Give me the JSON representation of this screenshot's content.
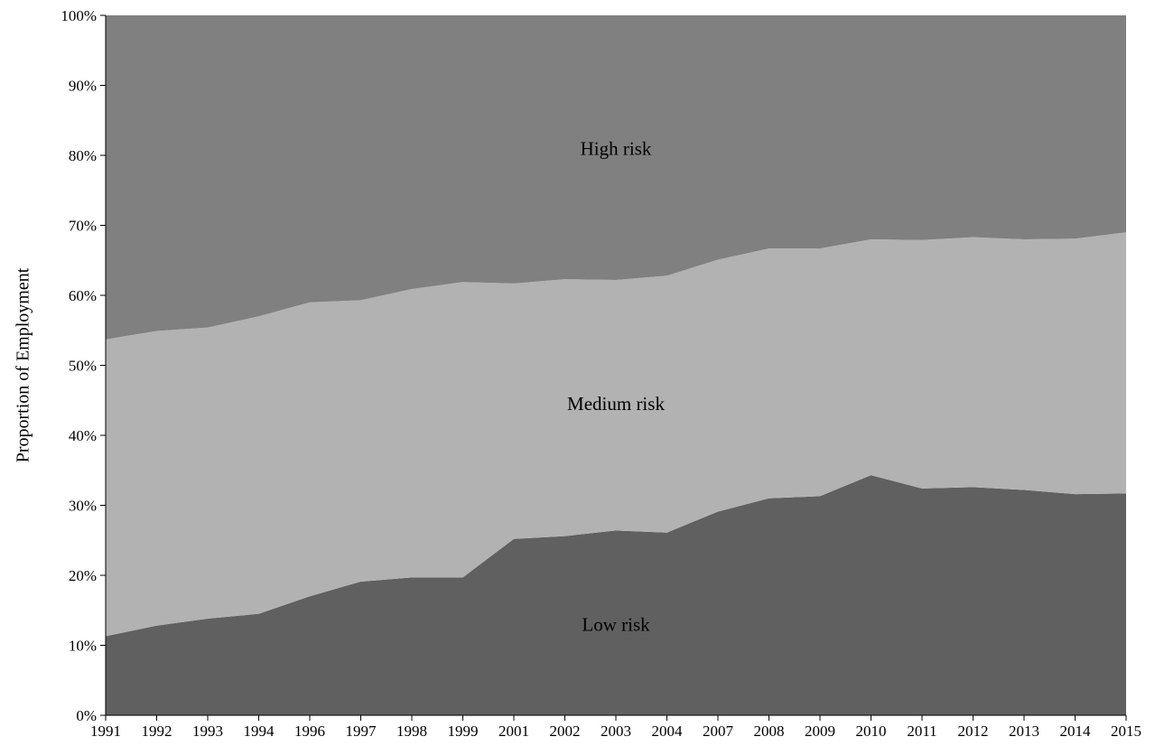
{
  "chart_data": {
    "type": "area",
    "stacked": true,
    "normalized_percent": true,
    "ylabel": "Proportion of Employment",
    "xlabel": "",
    "ylim": [
      0,
      100
    ],
    "yticks": [
      "0%",
      "10%",
      "20%",
      "30%",
      "40%",
      "50%",
      "60%",
      "70%",
      "80%",
      "90%",
      "100%"
    ],
    "categories": [
      "1991",
      "1992",
      "1993",
      "1994",
      "1996",
      "1997",
      "1998",
      "1999",
      "2001",
      "2002",
      "2003",
      "2004",
      "2007",
      "2008",
      "2009",
      "2010",
      "2011",
      "2012",
      "2013",
      "2014",
      "2015"
    ],
    "series": [
      {
        "name": "Low risk",
        "color": "#606060",
        "values": [
          11.3,
          12.8,
          13.8,
          14.5,
          17.0,
          19.1,
          19.7,
          19.7,
          25.2,
          25.6,
          26.4,
          26.1,
          29.1,
          31.0,
          31.3,
          34.3,
          32.4,
          32.6,
          32.2,
          31.6,
          31.7
        ]
      },
      {
        "name": "Medium risk",
        "color": "#b2b2b2",
        "values": [
          42.4,
          42.1,
          41.6,
          42.5,
          42.0,
          40.2,
          41.2,
          42.2,
          36.5,
          36.7,
          35.8,
          36.7,
          36.0,
          35.7,
          35.4,
          33.7,
          35.5,
          35.7,
          35.8,
          36.5,
          37.3
        ]
      },
      {
        "name": "High risk",
        "color": "#808080",
        "values": [
          46.3,
          45.1,
          44.6,
          43.0,
          41.0,
          40.7,
          39.1,
          38.1,
          38.3,
          37.7,
          37.8,
          37.2,
          34.9,
          33.3,
          33.3,
          32.0,
          32.1,
          31.7,
          32.0,
          31.9,
          31.0
        ]
      }
    ],
    "annotations": {
      "high": "High risk",
      "medium": "Medium risk",
      "low": "Low risk"
    },
    "grid": false,
    "legend": "none"
  }
}
